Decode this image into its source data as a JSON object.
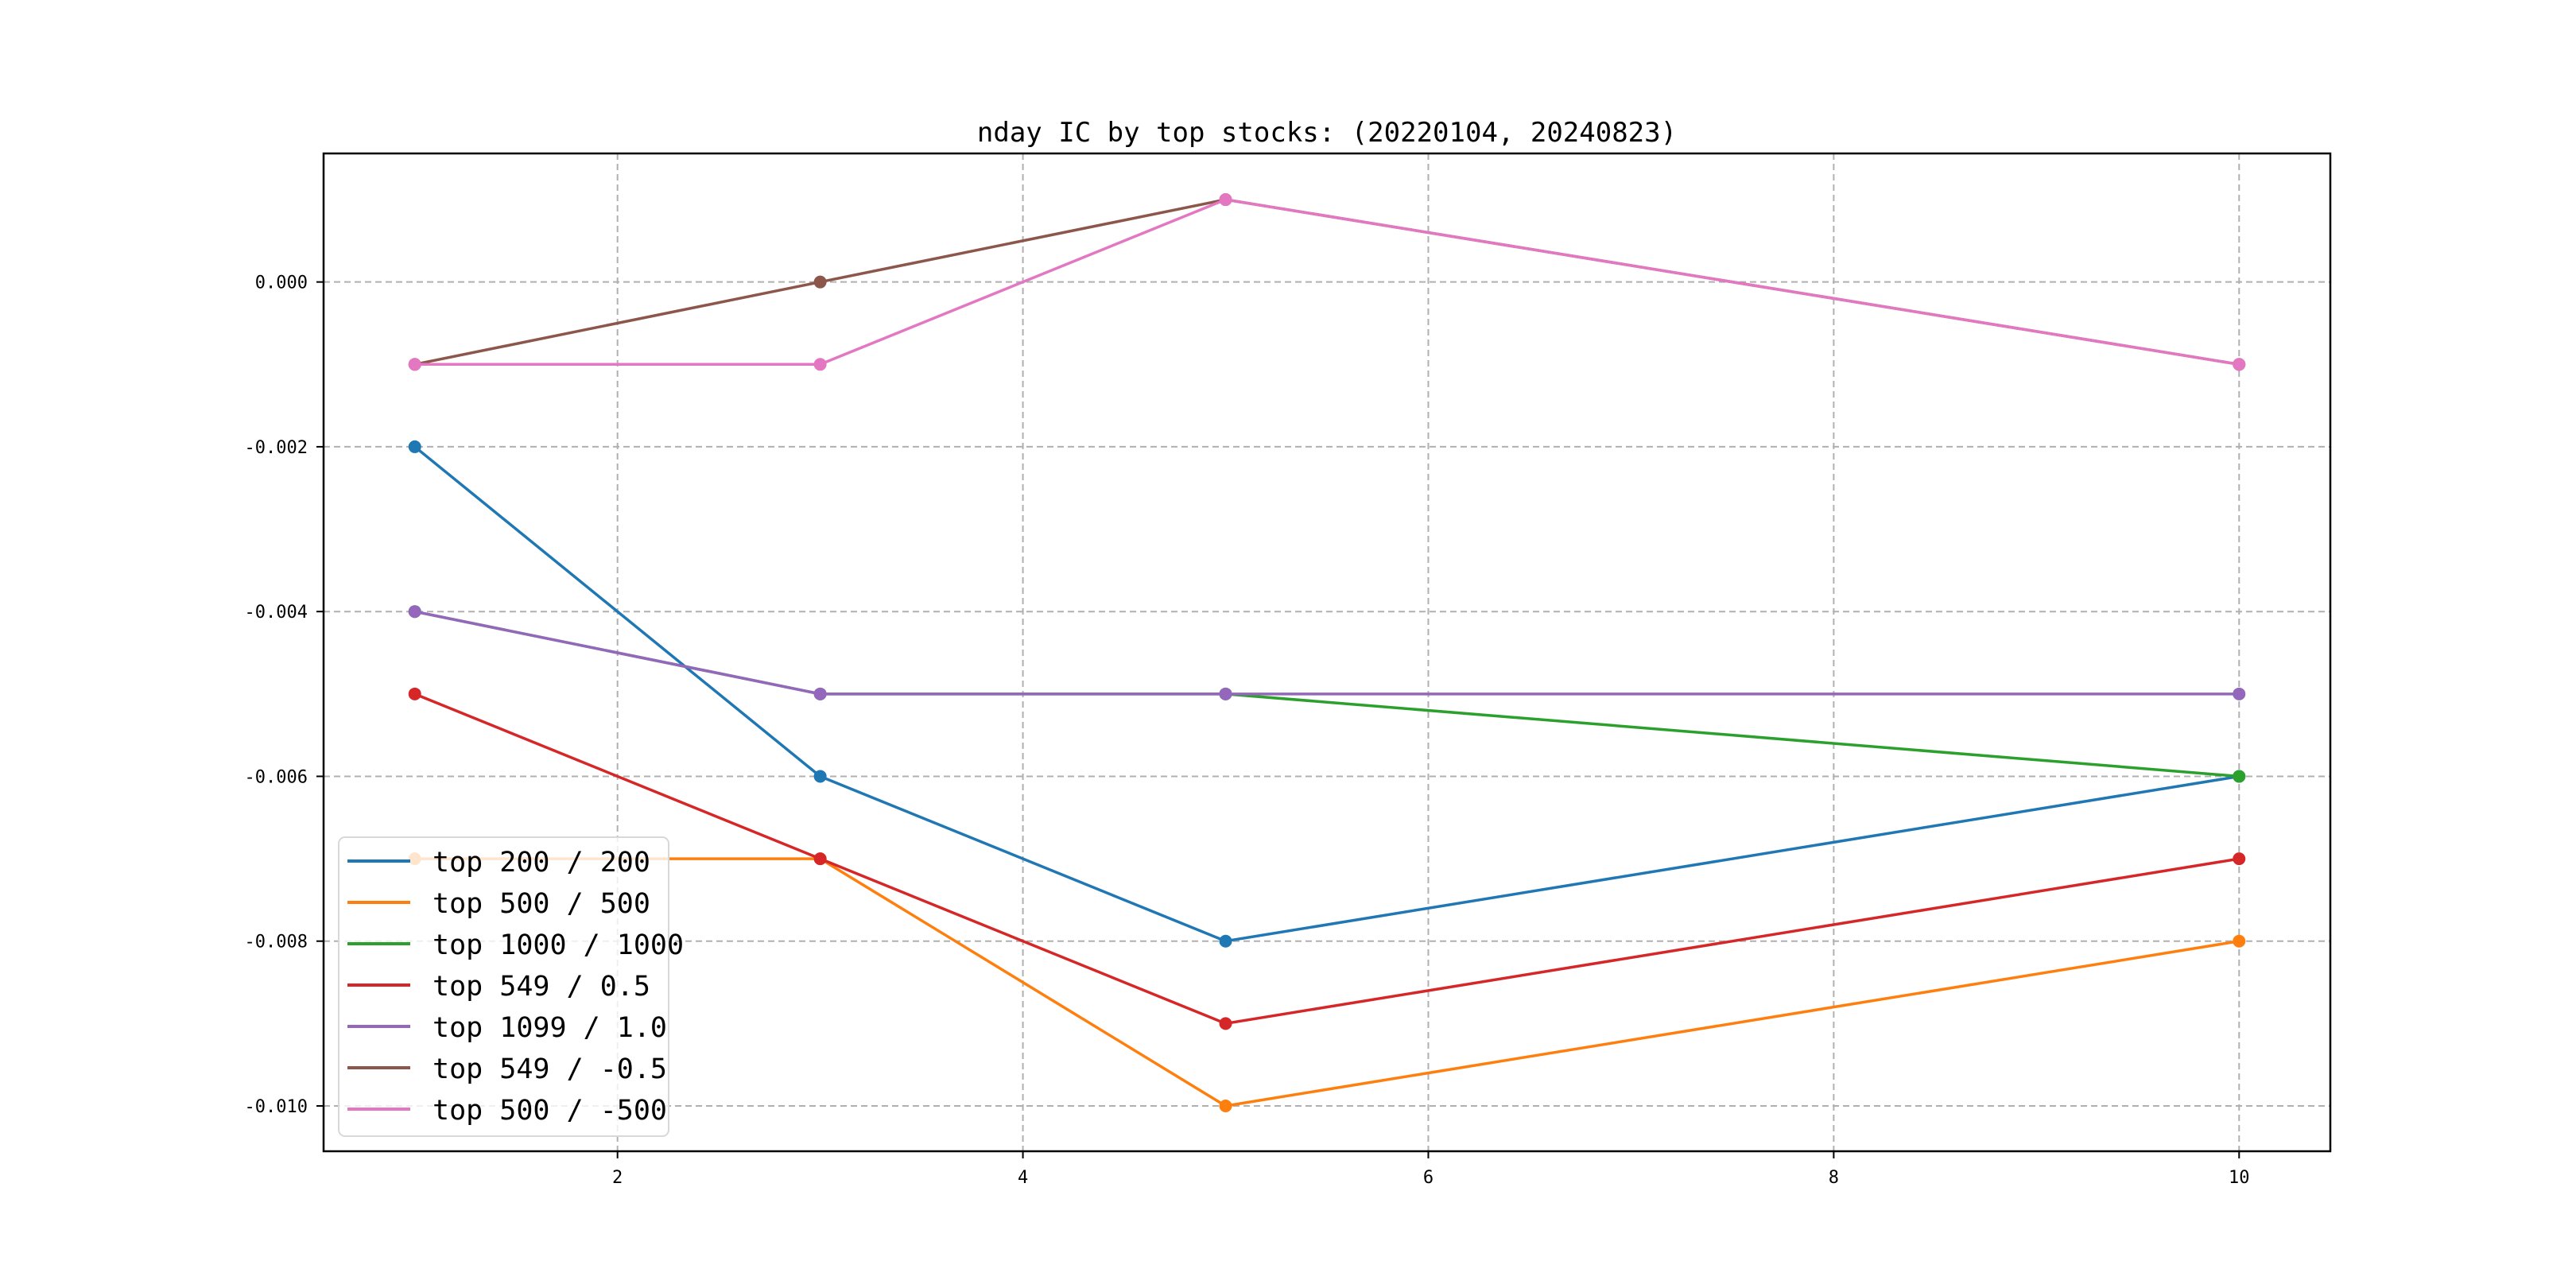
{
  "chart_data": {
    "type": "line",
    "title": "nday IC by top stocks: (20220104, 20240823)",
    "xlabel": "",
    "ylabel": "",
    "x": [
      1,
      3,
      5,
      10
    ],
    "xlim": [
      0.55,
      10.45
    ],
    "ylim": [
      -0.01055,
      0.00156
    ],
    "xticks": [
      2,
      4,
      6,
      8,
      10
    ],
    "xtick_labels": [
      "2",
      "4",
      "6",
      "8",
      "10"
    ],
    "yticks": [
      0.0,
      -0.002,
      -0.004,
      -0.006,
      -0.008,
      -0.01
    ],
    "ytick_labels": [
      "0.000",
      "-0.002",
      "-0.004",
      "-0.006",
      "-0.008",
      "-0.010"
    ],
    "grid": true,
    "legend_position": "lower-left",
    "series": [
      {
        "name": "top 200 / 200",
        "color": "#1f77b4",
        "values": [
          -0.002,
          -0.006,
          -0.008,
          -0.006
        ]
      },
      {
        "name": "top 500 / 500",
        "color": "#ff7f0e",
        "values": [
          -0.007,
          -0.007,
          -0.01,
          -0.008
        ]
      },
      {
        "name": "top 1000 / 1000",
        "color": "#2ca02c",
        "values": [
          -0.004,
          -0.005,
          -0.005,
          -0.006
        ]
      },
      {
        "name": "top 549 / 0.5",
        "color": "#d62728",
        "values": [
          -0.005,
          -0.007,
          -0.009,
          -0.007
        ]
      },
      {
        "name": "top 1099 / 1.0",
        "color": "#9467bd",
        "values": [
          -0.004,
          -0.005,
          -0.005,
          -0.005
        ]
      },
      {
        "name": "top 549 / -0.5",
        "color": "#8c564b",
        "values": [
          -0.001,
          0.0,
          0.001,
          -0.001
        ]
      },
      {
        "name": "top 500 / -500",
        "color": "#e377c2",
        "values": [
          -0.001,
          -0.001,
          0.001,
          -0.001
        ]
      }
    ]
  }
}
